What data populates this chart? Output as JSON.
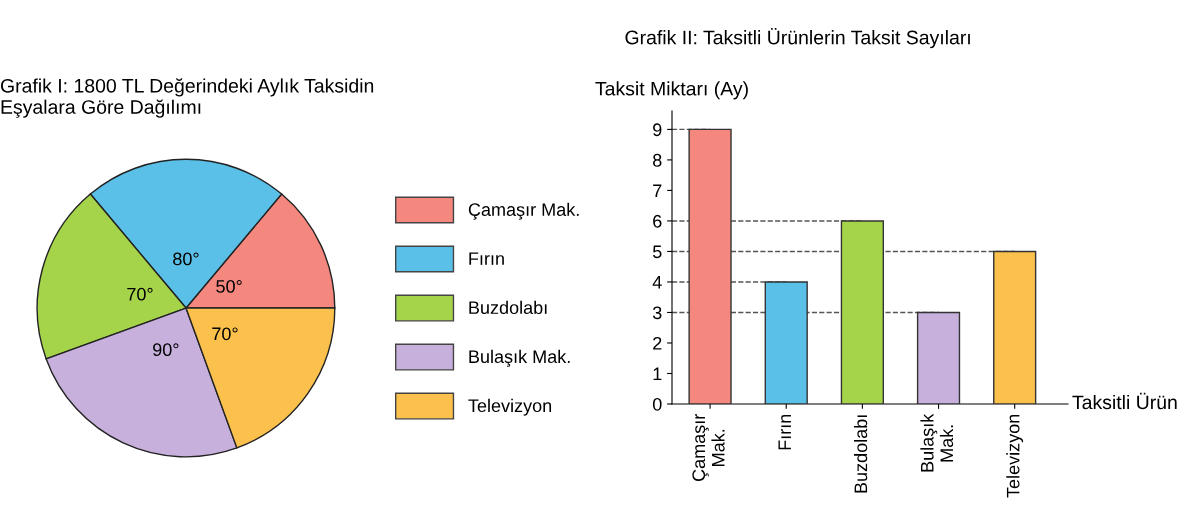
{
  "chart_data": [
    {
      "type": "pie",
      "title": "Grafik I: 1800 TL Değerindeki Aylık Taksidin\nEşyalara Göre Dağılımı",
      "categories": [
        "Çamaşır Mak.",
        "Fırın",
        "Buzdolabı",
        "Bulaşık Mak.",
        "Televizyon"
      ],
      "values": [
        50,
        80,
        70,
        90,
        70
      ],
      "value_labels": [
        "50°",
        "80°",
        "70°",
        "90°",
        "70°"
      ],
      "colors": [
        "#f4877e",
        "#5bc0e8",
        "#a5d34a",
        "#c7b0dc",
        "#fbc14c"
      ],
      "legend": "right"
    },
    {
      "type": "bar",
      "title": "Grafik II: Taksitli Ürünlerin Taksit Sayıları",
      "ylabel": "Taksit Miktarı (Ay)",
      "xlabel": "Taksitli Ürün",
      "categories": [
        "Çamaşır\nMak.",
        "Fırın",
        "Buzdolabı",
        "Bulaşık\nMak.",
        "Televizyon"
      ],
      "values": [
        9,
        4,
        6,
        3,
        5
      ],
      "colors": [
        "#f4877e",
        "#5bc0e8",
        "#a5d34a",
        "#c7b0dc",
        "#fbc14c"
      ],
      "ylim": [
        0,
        9.6
      ],
      "yticks": [
        0,
        1,
        2,
        3,
        4,
        5,
        6,
        7,
        8,
        9
      ],
      "grid": false,
      "ref_lines": [
        {
          "axis": "y",
          "value": 9,
          "line_style": "dashed"
        },
        {
          "axis": "y",
          "value": 6,
          "line_style": "dashed"
        },
        {
          "axis": "y",
          "value": 5,
          "line_style": "dashed"
        },
        {
          "axis": "y",
          "value": 4,
          "line_style": "dashed"
        },
        {
          "axis": "y",
          "value": 3,
          "line_style": "dashed"
        }
      ]
    }
  ]
}
